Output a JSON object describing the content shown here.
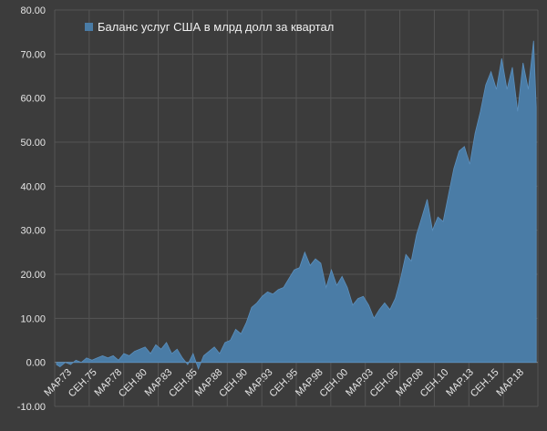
{
  "chart_data": {
    "type": "area",
    "legend_position": "top-left",
    "grid": true,
    "colors": {
      "background": "#3c3c3c",
      "grid": "#555555",
      "area_fill": "#4a7ca6",
      "area_stroke": "#5b8fbd",
      "text": "#e6e6e6"
    },
    "ylim": [
      -10,
      80
    ],
    "yticks": [
      "-10.00",
      "0.00",
      "10.00",
      "20.00",
      "30.00",
      "40.00",
      "50.00",
      "60.00",
      "70.00",
      "80.00"
    ],
    "xticks": [
      "МАР.73",
      "СЕН.75",
      "МАР.78",
      "СЕН.80",
      "МАР.83",
      "СЕН.85",
      "МАР.88",
      "СЕН.90",
      "МАР.93",
      "СЕН.95",
      "МАР.98",
      "СЕН.00",
      "МАР.03",
      "СЕН.05",
      "МАР.08",
      "СЕН.10",
      "МАР.13",
      "СЕН.15",
      "МАР.18"
    ],
    "series": [
      {
        "name": "Баланс услуг США в млрд долл за квартал",
        "x": [
          1973.17,
          1973.5,
          1974,
          1974.5,
          1975,
          1975.5,
          1976,
          1976.5,
          1977,
          1977.5,
          1978,
          1978.5,
          1979,
          1979.5,
          1980,
          1980.5,
          1981,
          1981.5,
          1982,
          1982.5,
          1983,
          1983.5,
          1984,
          1984.5,
          1985,
          1985.5,
          1986,
          1986.5,
          1987,
          1987.5,
          1988,
          1988.5,
          1989,
          1989.5,
          1990,
          1990.5,
          1991,
          1991.5,
          1992,
          1992.5,
          1993,
          1993.5,
          1994,
          1994.5,
          1995,
          1995.5,
          1996,
          1996.5,
          1997,
          1997.5,
          1998,
          1998.5,
          1999,
          1999.5,
          2000,
          2000.5,
          2001,
          2001.5,
          2002,
          2002.5,
          2003,
          2003.5,
          2004,
          2004.5,
          2005,
          2005.5,
          2006,
          2006.5,
          2007,
          2007.5,
          2008,
          2008.5,
          2009,
          2009.5,
          2010,
          2010.5,
          2011,
          2011.5,
          2012,
          2012.5,
          2013,
          2013.5,
          2014,
          2014.5,
          2015,
          2015.5,
          2016,
          2016.5,
          2017,
          2017.5,
          2018,
          2018.25
        ],
        "values": [
          -0.5,
          -1.0,
          0.0,
          -0.5,
          0.5,
          0.0,
          1.0,
          0.5,
          1.0,
          1.5,
          1.0,
          1.5,
          0.5,
          2.0,
          1.5,
          2.5,
          3.0,
          3.5,
          2.0,
          4.0,
          3.0,
          4.5,
          2.0,
          3.0,
          1.0,
          -0.5,
          2.0,
          -1.5,
          1.5,
          2.5,
          3.5,
          2.0,
          4.5,
          5.0,
          7.5,
          6.5,
          9.0,
          12.5,
          13.5,
          15.0,
          16.0,
          15.5,
          16.5,
          17.0,
          19.0,
          21.0,
          21.5,
          25.0,
          22.0,
          23.5,
          22.5,
          17.0,
          21.0,
          17.5,
          19.5,
          17.0,
          13.0,
          14.5,
          15.0,
          13.0,
          10.0,
          12.0,
          13.5,
          12.0,
          14.5,
          19.0,
          24.5,
          23.0,
          29.0,
          33.0,
          37.0,
          30.0,
          33.0,
          32.0,
          38.0,
          44.0,
          48.0,
          49.0,
          45.0,
          52.0,
          57.0,
          63.0,
          66.0,
          62.0,
          69.0,
          62.0,
          67.0,
          57.0,
          68.0,
          62.0,
          73.0,
          58.0
        ]
      }
    ]
  }
}
